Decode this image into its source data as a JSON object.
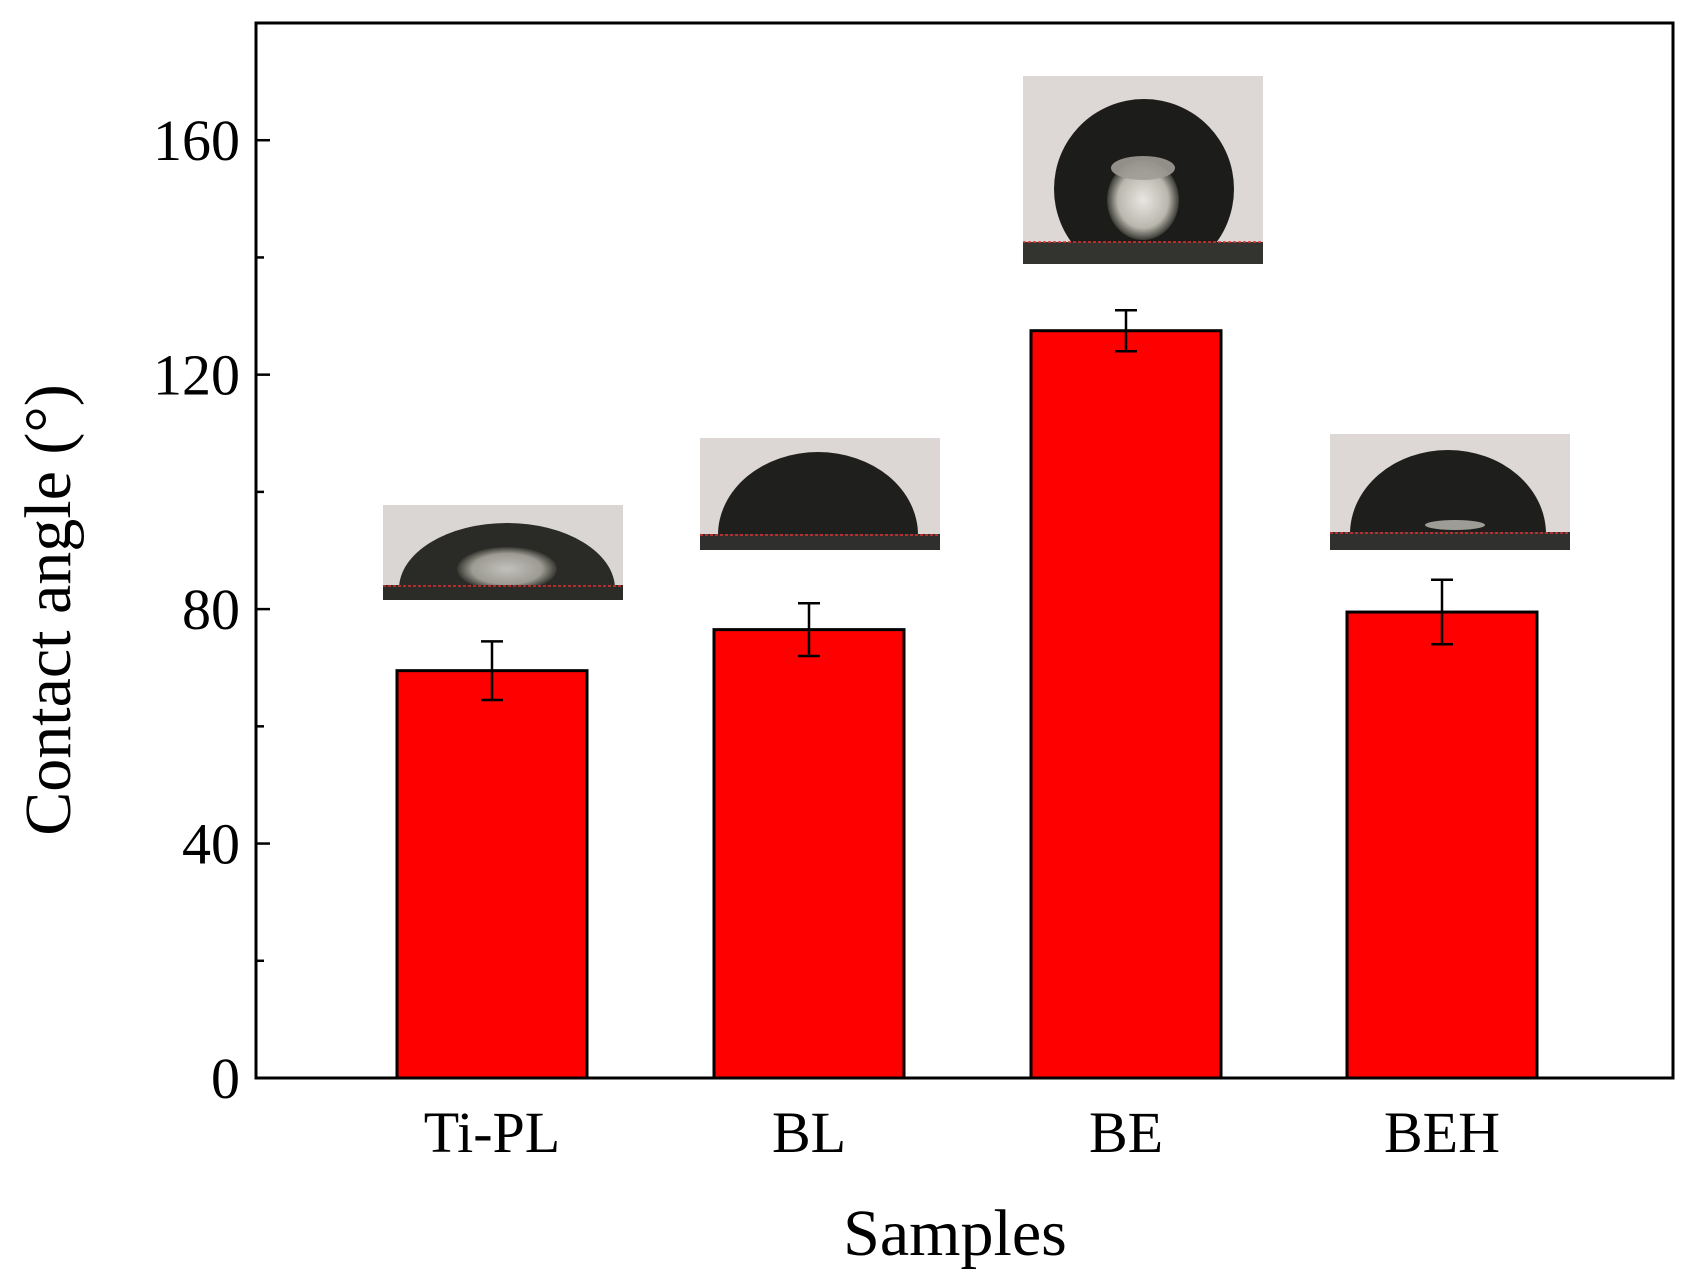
{
  "chart_data": {
    "type": "bar",
    "title": "",
    "xlabel": "Samples",
    "ylabel": "Contact angle (°)",
    "categories": [
      "Ti-PL",
      "BL",
      "BE",
      "BEH"
    ],
    "values": [
      69.5,
      76.5,
      127.5,
      79.5
    ],
    "errors": [
      5,
      4.5,
      3.5,
      5.5
    ],
    "ylim": [
      0,
      180
    ],
    "yticks": [
      0,
      40,
      80,
      120,
      160
    ],
    "yticks_labels": [
      "0",
      "40",
      "80",
      "120",
      "160"
    ],
    "minor_yticks": [
      20,
      60,
      100,
      140
    ],
    "bar_color": "#ff0000",
    "inset_images": [
      {
        "category": "Ti-PL",
        "content": "water-droplet-photo"
      },
      {
        "category": "BL",
        "content": "water-droplet-photo"
      },
      {
        "category": "BE",
        "content": "water-droplet-photo"
      },
      {
        "category": "BEH",
        "content": "water-droplet-photo"
      }
    ]
  }
}
